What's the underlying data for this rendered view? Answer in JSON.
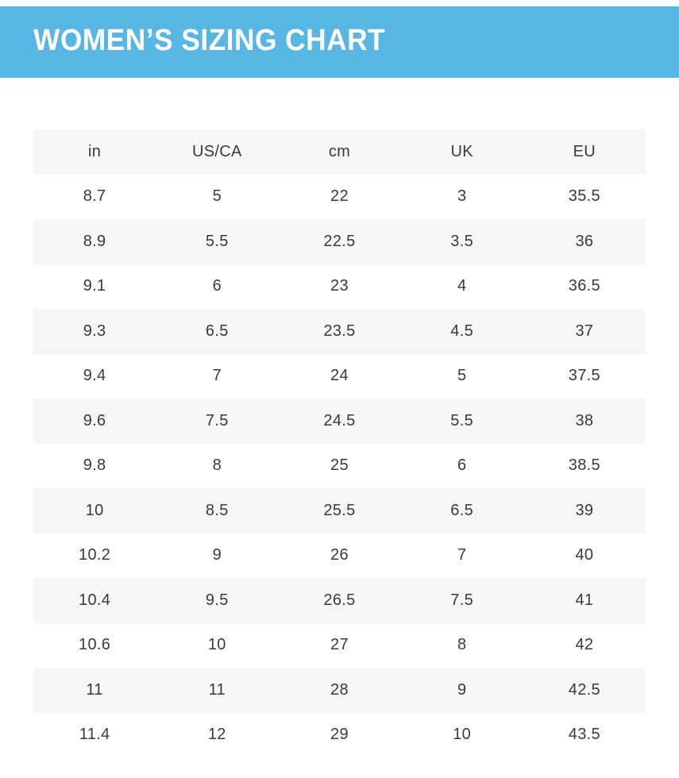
{
  "header": {
    "title": "WOMEN’S SIZING CHART"
  },
  "colors": {
    "banner_blue": "#57b6e3",
    "stripe_gray": "#f6f6f6",
    "text_dark": "#3a3a3a",
    "title_white": "#ffffff"
  },
  "table": {
    "columns": [
      "in",
      "US/CA",
      "cm",
      "UK",
      "EU"
    ],
    "rows": [
      [
        "8.7",
        "5",
        "22",
        "3",
        "35.5"
      ],
      [
        "8.9",
        "5.5",
        "22.5",
        "3.5",
        "36"
      ],
      [
        "9.1",
        "6",
        "23",
        "4",
        "36.5"
      ],
      [
        "9.3",
        "6.5",
        "23.5",
        "4.5",
        "37"
      ],
      [
        "9.4",
        "7",
        "24",
        "5",
        "37.5"
      ],
      [
        "9.6",
        "7.5",
        "24.5",
        "5.5",
        "38"
      ],
      [
        "9.8",
        "8",
        "25",
        "6",
        "38.5"
      ],
      [
        "10",
        "8.5",
        "25.5",
        "6.5",
        "39"
      ],
      [
        "10.2",
        "9",
        "26",
        "7",
        "40"
      ],
      [
        "10.4",
        "9.5",
        "26.5",
        "7.5",
        "41"
      ],
      [
        "10.6",
        "10",
        "27",
        "8",
        "42"
      ],
      [
        "11",
        "11",
        "28",
        "9",
        "42.5"
      ],
      [
        "11.4",
        "12",
        "29",
        "10",
        "43.5"
      ]
    ]
  },
  "chart_data": {
    "type": "table",
    "title": "WOMEN’S SIZING CHART",
    "columns": [
      "in",
      "US/CA",
      "cm",
      "UK",
      "EU"
    ],
    "rows": [
      [
        8.7,
        5,
        22,
        3,
        35.5
      ],
      [
        8.9,
        5.5,
        22.5,
        3.5,
        36
      ],
      [
        9.1,
        6,
        23,
        4,
        36.5
      ],
      [
        9.3,
        6.5,
        23.5,
        4.5,
        37
      ],
      [
        9.4,
        7,
        24,
        5,
        37.5
      ],
      [
        9.6,
        7.5,
        24.5,
        5.5,
        38
      ],
      [
        9.8,
        8,
        25,
        6,
        38.5
      ],
      [
        10,
        8.5,
        25.5,
        6.5,
        39
      ],
      [
        10.2,
        9,
        26,
        7,
        40
      ],
      [
        10.4,
        9.5,
        26.5,
        7.5,
        41
      ],
      [
        10.6,
        10,
        27,
        8,
        42
      ],
      [
        11,
        11,
        28,
        9,
        42.5
      ],
      [
        11.4,
        12,
        29,
        10,
        43.5
      ]
    ],
    "layout_hints": {
      "header_background": "#f6f6f6",
      "row_striping": "alternating white / #f6f6f6",
      "cell_alignment": "center"
    }
  }
}
